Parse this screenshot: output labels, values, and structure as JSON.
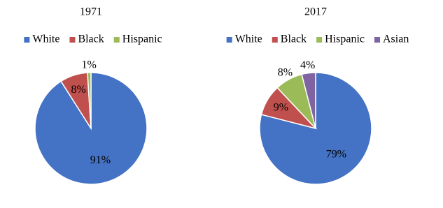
{
  "chart_data": [
    {
      "type": "pie",
      "title": "1971",
      "categories": [
        "White",
        "Black",
        "Hispanic"
      ],
      "values": [
        91,
        8,
        1
      ],
      "value_labels": [
        "91%",
        "8%",
        "1%"
      ],
      "colors": [
        "#4472c4",
        "#c0504d",
        "#9bbb59"
      ]
    },
    {
      "type": "pie",
      "title": "2017",
      "categories": [
        "White",
        "Black",
        "Hispanic",
        "Asian"
      ],
      "values": [
        79,
        9,
        8,
        4
      ],
      "value_labels": [
        "79%",
        "9%",
        "8%",
        "4%"
      ],
      "colors": [
        "#4472c4",
        "#c0504d",
        "#9bbb59",
        "#8064a2"
      ]
    }
  ]
}
